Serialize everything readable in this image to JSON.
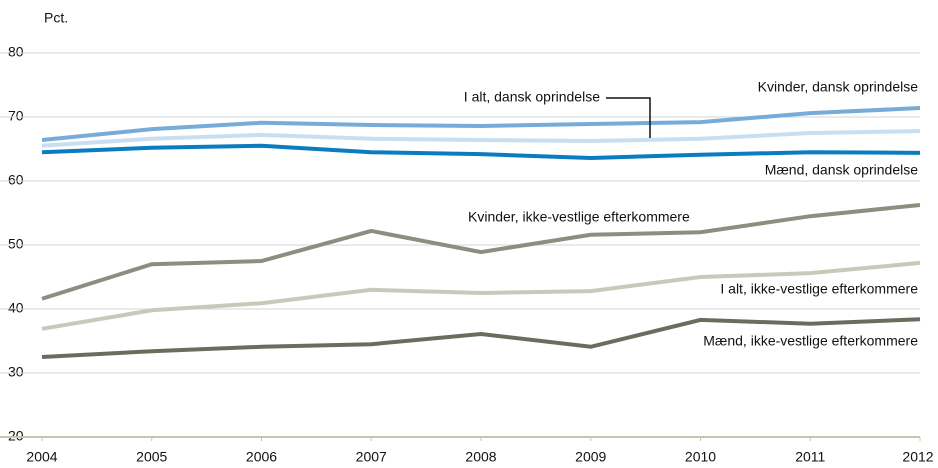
{
  "chart_data": {
    "type": "line",
    "y_label": "Pct.",
    "x": [
      2004,
      2005,
      2006,
      2007,
      2008,
      2009,
      2010,
      2011,
      2012
    ],
    "xlim": [
      2004,
      2012
    ],
    "xticks": [
      2004,
      2005,
      2006,
      2007,
      2008,
      2009,
      2010,
      2011,
      2012
    ],
    "ylim": [
      20,
      80
    ],
    "yticks": [
      20,
      30,
      40,
      50,
      60,
      70,
      80
    ],
    "grid": true,
    "series": [
      {
        "name": "Kvinder, dansk oprindelse",
        "color": "#78acd8",
        "values": [
          66.4,
          68.1,
          69.1,
          68.75,
          68.6,
          68.9,
          69.2,
          70.6,
          71.4
        ]
      },
      {
        "name": "I alt, dansk oprindelse",
        "color": "#c9dff1",
        "values": [
          65.5,
          66.6,
          67.2,
          66.6,
          66.4,
          66.25,
          66.6,
          67.5,
          67.8
        ]
      },
      {
        "name": "Mænd, dansk oprindelse",
        "color": "#0b7cc1",
        "values": [
          64.5,
          65.2,
          65.5,
          64.5,
          64.2,
          63.6,
          64.1,
          64.5,
          64.4
        ]
      },
      {
        "name": "Kvinder, ikke-vestlige efterkommere",
        "color": "#8d8d80",
        "values": [
          41.6,
          47.0,
          47.5,
          52.2,
          48.9,
          51.6,
          52.0,
          54.5,
          56.25
        ]
      },
      {
        "name": "I alt, ikke-vestlige efterkommere",
        "color": "#c9c9ba",
        "values": [
          36.9,
          39.8,
          40.9,
          43.0,
          42.5,
          42.8,
          45.0,
          45.6,
          47.2
        ]
      },
      {
        "name": "Mænd, ikke-vestlige efterkommere",
        "color": "#6c6c5e",
        "values": [
          32.5,
          33.4,
          34.1,
          34.5,
          36.1,
          34.1,
          38.3,
          37.7,
          38.4
        ]
      }
    ]
  }
}
